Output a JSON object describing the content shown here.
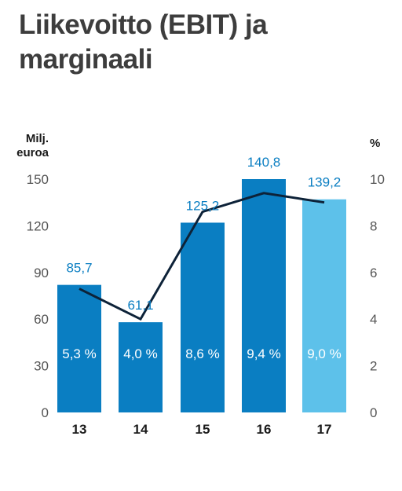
{
  "chart_data": {
    "type": "bar",
    "title_lines": [
      "Liikevoitto (EBIT) ja",
      "marginaali"
    ],
    "ylabel_lines": [
      "Milj.",
      "euroa"
    ],
    "y2label": "%",
    "categories": [
      "13",
      "14",
      "15",
      "16",
      "17"
    ],
    "values": [
      85.7,
      61.1,
      125.2,
      140.8,
      139.2
    ],
    "value_labels": [
      "85,7",
      "61,1",
      "125,2",
      "140,8",
      "139,2"
    ],
    "bar_height_values": [
      82,
      58,
      122,
      150,
      137
    ],
    "ylim": [
      0,
      150
    ],
    "yticks": [
      "0",
      "30",
      "60",
      "90",
      "120",
      "150"
    ],
    "ytick_values": [
      0,
      30,
      60,
      90,
      120,
      150
    ],
    "y2lim": [
      0,
      10
    ],
    "y2ticks": [
      "0",
      "2",
      "4",
      "6",
      "8",
      "10"
    ],
    "y2tick_values": [
      0,
      2,
      4,
      6,
      8,
      10
    ],
    "line_series": {
      "values": [
        5.3,
        4.0,
        8.6,
        9.4,
        9.0
      ],
      "labels": [
        "5,3 %",
        "4,0 %",
        "8,6 %",
        "9,4 %",
        "9,0 %"
      ]
    },
    "grid": false,
    "legend": "none",
    "colors": {
      "bar": "#0a7ec2",
      "bar_highlight": "#5dc1ea",
      "line": "#0d2238",
      "value_label": "#0a7ec2",
      "pct_label": "#ffffff",
      "title": "#3d3d3d"
    },
    "highlight_index": 4
  }
}
